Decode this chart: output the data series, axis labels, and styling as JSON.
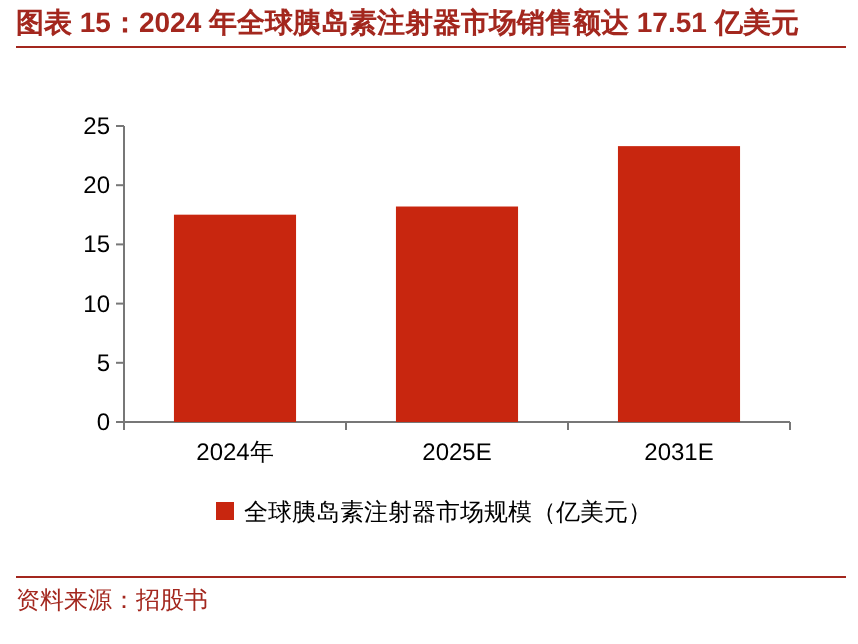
{
  "chart_data": {
    "type": "bar",
    "title": "图表 15：2024 年全球胰岛素注射器市场销售额达 17.51 亿美元",
    "categories": [
      "2024年",
      "2025E",
      "2031E"
    ],
    "series": [
      {
        "name": "全球胰岛素注射器市场规模（亿美元）",
        "color": "#c8260f",
        "values": [
          17.51,
          18.2,
          23.3
        ]
      }
    ],
    "ylim": [
      0,
      25
    ],
    "yticks": [
      0,
      5,
      10,
      15,
      20,
      25
    ],
    "legend": "bottom",
    "annotations": [
      "资料来源：招股书"
    ]
  }
}
